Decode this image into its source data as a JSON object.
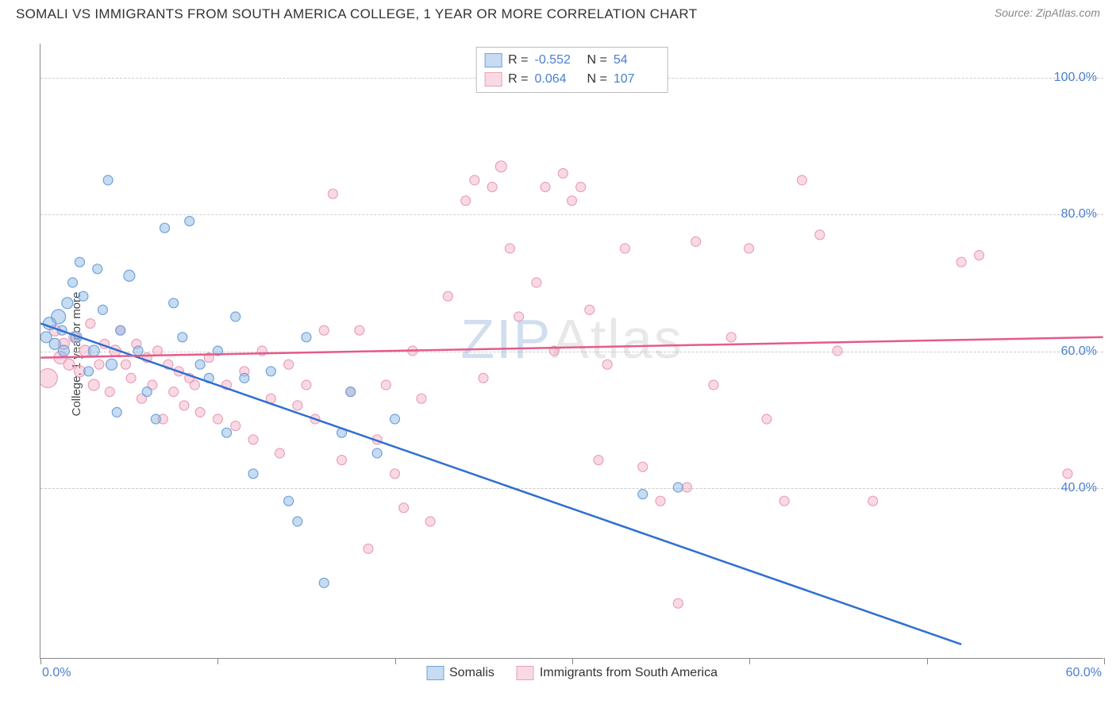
{
  "header": {
    "title": "SOMALI VS IMMIGRANTS FROM SOUTH AMERICA COLLEGE, 1 YEAR OR MORE CORRELATION CHART",
    "source_label": "Source: ",
    "source_name": "ZipAtlas.com"
  },
  "chart": {
    "type": "scatter",
    "ylabel": "College, 1 year or more",
    "xlim": [
      0,
      60
    ],
    "ylim": [
      15,
      105
    ],
    "xtick_positions": [
      0,
      10,
      20,
      30,
      40,
      50,
      60
    ],
    "xtick_labels_shown": {
      "0": "0.0%",
      "60": "60.0%"
    },
    "ytick_values": [
      40,
      60,
      80,
      100
    ],
    "ytick_labels": [
      "40.0%",
      "60.0%",
      "80.0%",
      "100.0%"
    ],
    "grid_color": "#cccccc",
    "axis_color": "#888888",
    "background_color": "#ffffff",
    "label_color": "#4a7fd0",
    "watermark_text_1": "ZIP",
    "watermark_text_2": "Atlas",
    "series": {
      "a": {
        "label": "Somalis",
        "fill": "rgba(130,175,225,0.45)",
        "stroke": "#6fa3dd",
        "line_color": "#2f6fd0",
        "R": "-0.552",
        "N": "54",
        "regression": {
          "x1": 0,
          "y1": 64,
          "x2": 52,
          "y2": 17
        },
        "points": [
          [
            0.3,
            62,
            7
          ],
          [
            0.5,
            64,
            8
          ],
          [
            0.8,
            61,
            7
          ],
          [
            1.0,
            65,
            9
          ],
          [
            1.2,
            63,
            6
          ],
          [
            1.3,
            60,
            7
          ],
          [
            1.5,
            67,
            7
          ],
          [
            1.8,
            70,
            6
          ],
          [
            2.0,
            62,
            7
          ],
          [
            2.2,
            73,
            6
          ],
          [
            2.4,
            68,
            6
          ],
          [
            2.7,
            57,
            6
          ],
          [
            3.0,
            60,
            7
          ],
          [
            3.2,
            72,
            6
          ],
          [
            3.5,
            66,
            6
          ],
          [
            3.8,
            85,
            6
          ],
          [
            4.0,
            58,
            7
          ],
          [
            4.3,
            51,
            6
          ],
          [
            4.5,
            63,
            6
          ],
          [
            5.0,
            71,
            7
          ],
          [
            5.5,
            60,
            6
          ],
          [
            6.0,
            54,
            6
          ],
          [
            6.5,
            50,
            6
          ],
          [
            7.0,
            78,
            6
          ],
          [
            7.5,
            67,
            6
          ],
          [
            8.0,
            62,
            6
          ],
          [
            8.4,
            79,
            6
          ],
          [
            9.0,
            58,
            6
          ],
          [
            9.5,
            56,
            6
          ],
          [
            10.0,
            60,
            6
          ],
          [
            10.5,
            48,
            6
          ],
          [
            11.0,
            65,
            6
          ],
          [
            11.5,
            56,
            6
          ],
          [
            12.0,
            42,
            6
          ],
          [
            13.0,
            57,
            6
          ],
          [
            14.0,
            38,
            6
          ],
          [
            14.5,
            35,
            6
          ],
          [
            15.0,
            62,
            6
          ],
          [
            16.0,
            26,
            6
          ],
          [
            17.0,
            48,
            6
          ],
          [
            17.5,
            54,
            6
          ],
          [
            19.0,
            45,
            6
          ],
          [
            20.0,
            50,
            6
          ],
          [
            34.0,
            39,
            6
          ],
          [
            36.0,
            40,
            6
          ]
        ]
      },
      "b": {
        "label": "Immigrants from South America",
        "fill": "rgba(240,160,185,0.40)",
        "stroke": "#eaa0b8",
        "line_color": "#e65a8a",
        "R": "0.064",
        "N": "107",
        "regression": {
          "x1": 0,
          "y1": 59,
          "x2": 60,
          "y2": 62
        },
        "points": [
          [
            0.4,
            56,
            12
          ],
          [
            0.8,
            63,
            7
          ],
          [
            1.1,
            59,
            8
          ],
          [
            1.3,
            61,
            7
          ],
          [
            1.6,
            58,
            7
          ],
          [
            1.9,
            62,
            7
          ],
          [
            2.2,
            57,
            7
          ],
          [
            2.5,
            60,
            7
          ],
          [
            2.8,
            64,
            6
          ],
          [
            3.0,
            55,
            7
          ],
          [
            3.3,
            58,
            6
          ],
          [
            3.6,
            61,
            6
          ],
          [
            3.9,
            54,
            6
          ],
          [
            4.2,
            60,
            7
          ],
          [
            4.5,
            63,
            6
          ],
          [
            4.8,
            58,
            6
          ],
          [
            5.1,
            56,
            6
          ],
          [
            5.4,
            61,
            6
          ],
          [
            5.7,
            53,
            6
          ],
          [
            6.0,
            59,
            6
          ],
          [
            6.3,
            55,
            6
          ],
          [
            6.6,
            60,
            6
          ],
          [
            6.9,
            50,
            6
          ],
          [
            7.2,
            58,
            6
          ],
          [
            7.5,
            54,
            6
          ],
          [
            7.8,
            57,
            6
          ],
          [
            8.1,
            52,
            6
          ],
          [
            8.4,
            56,
            6
          ],
          [
            8.7,
            55,
            6
          ],
          [
            9.0,
            51,
            6
          ],
          [
            9.5,
            59,
            6
          ],
          [
            10.0,
            50,
            6
          ],
          [
            10.5,
            55,
            6
          ],
          [
            11.0,
            49,
            6
          ],
          [
            11.5,
            57,
            6
          ],
          [
            12.0,
            47,
            6
          ],
          [
            12.5,
            60,
            6
          ],
          [
            13.0,
            53,
            6
          ],
          [
            13.5,
            45,
            6
          ],
          [
            14.0,
            58,
            6
          ],
          [
            14.5,
            52,
            6
          ],
          [
            15.0,
            55,
            6
          ],
          [
            15.5,
            50,
            6
          ],
          [
            16.0,
            63,
            6
          ],
          [
            16.5,
            83,
            6
          ],
          [
            17.0,
            44,
            6
          ],
          [
            17.5,
            54,
            6
          ],
          [
            18.0,
            63,
            6
          ],
          [
            18.5,
            31,
            6
          ],
          [
            19.0,
            47,
            6
          ],
          [
            19.5,
            55,
            6
          ],
          [
            20.0,
            42,
            6
          ],
          [
            20.5,
            37,
            6
          ],
          [
            21.0,
            60,
            6
          ],
          [
            21.5,
            53,
            6
          ],
          [
            22.0,
            35,
            6
          ],
          [
            23.0,
            68,
            6
          ],
          [
            24.0,
            82,
            6
          ],
          [
            24.5,
            85,
            6
          ],
          [
            25.0,
            56,
            6
          ],
          [
            25.5,
            84,
            6
          ],
          [
            26.0,
            87,
            7
          ],
          [
            26.5,
            75,
            6
          ],
          [
            27.0,
            65,
            6
          ],
          [
            28.0,
            70,
            6
          ],
          [
            28.5,
            84,
            6
          ],
          [
            29.0,
            60,
            6
          ],
          [
            29.5,
            86,
            6
          ],
          [
            30.0,
            82,
            6
          ],
          [
            30.5,
            84,
            6
          ],
          [
            31.0,
            66,
            6
          ],
          [
            31.5,
            44,
            6
          ],
          [
            32.0,
            58,
            6
          ],
          [
            33.0,
            75,
            6
          ],
          [
            34.0,
            43,
            6
          ],
          [
            35.0,
            38,
            6
          ],
          [
            36.0,
            23,
            6
          ],
          [
            36.5,
            40,
            6
          ],
          [
            37.0,
            76,
            6
          ],
          [
            38.0,
            55,
            6
          ],
          [
            39.0,
            62,
            6
          ],
          [
            40.0,
            75,
            6
          ],
          [
            41.0,
            50,
            6
          ],
          [
            42.0,
            38,
            6
          ],
          [
            43.0,
            85,
            6
          ],
          [
            44.0,
            77,
            6
          ],
          [
            45.0,
            60,
            6
          ],
          [
            47.0,
            38,
            6
          ],
          [
            52.0,
            73,
            6
          ],
          [
            53.0,
            74,
            6
          ],
          [
            58.0,
            42,
            6
          ]
        ]
      }
    },
    "legend_swatch_size": 22
  }
}
